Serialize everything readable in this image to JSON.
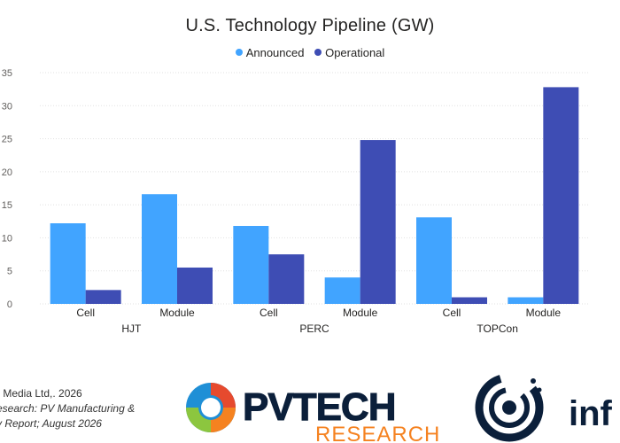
{
  "colors": {
    "announced": "#41A4FF",
    "operational": "#3E4DB4",
    "grid": "#E1E1E1",
    "text": "#252423",
    "brand_orange": "#F58220",
    "brand_navy": "#0B1F3A"
  },
  "chart_data": {
    "type": "bar",
    "title": "U.S. Technology Pipeline (GW)",
    "xlabel": "",
    "ylabel": "",
    "ylim": [
      0,
      35
    ],
    "yticks": [
      0,
      5,
      10,
      15,
      20,
      25,
      30,
      35
    ],
    "grid": true,
    "legend_position": "top-center",
    "groups": [
      "HJT",
      "PERC",
      "TOPCon"
    ],
    "categories": [
      "Cell",
      "Module",
      "Cell",
      "Module",
      "Cell",
      "Module"
    ],
    "series": [
      {
        "name": "Announced",
        "values": [
          12.2,
          16.6,
          11.8,
          4.0,
          13.1,
          1.0
        ]
      },
      {
        "name": "Operational",
        "values": [
          2.1,
          5.5,
          7.5,
          24.8,
          1.0,
          32.8
        ]
      }
    ]
  },
  "footer": {
    "line1": "r Media Ltd,. 2026",
    "line2": "esearch: PV Manufacturing &",
    "line3": "y Report; August 2026"
  },
  "logos": {
    "pvtech_main": "PVTECH",
    "pvtech_sub": "RESEARCH",
    "info_text": "inf"
  }
}
